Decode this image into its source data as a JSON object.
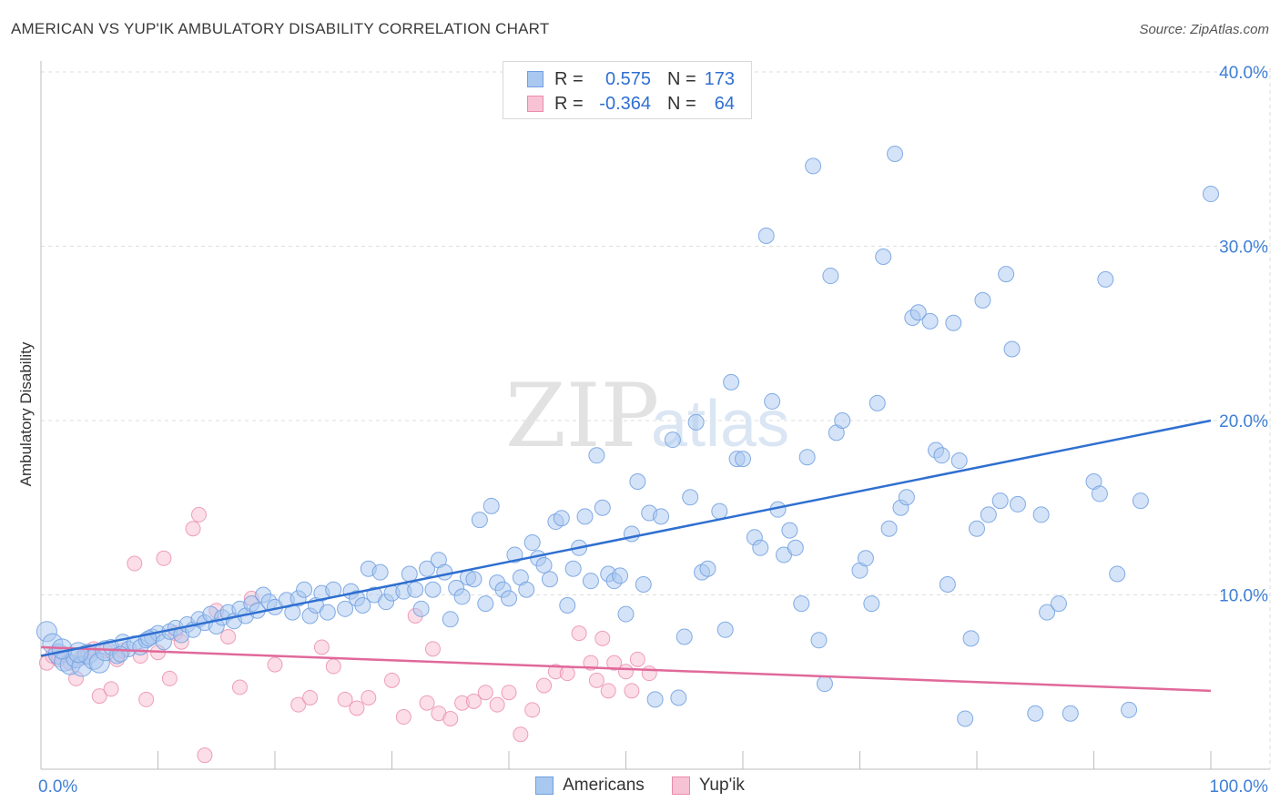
{
  "title": "AMERICAN VS YUP'IK AMBULATORY DISABILITY CORRELATION CHART",
  "source": "Source: ZipAtlas.com",
  "watermark": {
    "zip": "ZIP",
    "atlas": "atlas"
  },
  "legend": {
    "rows": [
      {
        "r_label": "R =",
        "r_value": "0.575",
        "n_label": "N =",
        "n_value": "173",
        "color": "#a9c8f0",
        "border": "#6f9fe0"
      },
      {
        "r_label": "R =",
        "r_value": "-0.364",
        "n_label": "N =",
        "n_value": "64",
        "color": "#f7c3d4",
        "border": "#ea8aac"
      }
    ]
  },
  "bottom_legend": [
    {
      "name": "Americans",
      "color": "#a9c8f0",
      "border": "#6f9fe0"
    },
    {
      "name": "Yup'ik",
      "color": "#f7c3d4",
      "border": "#ea8aac"
    }
  ],
  "chart_data": {
    "type": "scatter",
    "xlabel": "",
    "ylabel": "Ambulatory Disability",
    "xlim": [
      0,
      100
    ],
    "ylim": [
      0,
      40
    ],
    "x_tick_labels": [
      "0.0%",
      "100.0%"
    ],
    "y_ticks": [
      10,
      20,
      30,
      40
    ],
    "y_tick_labels": [
      "10.0%",
      "20.0%",
      "30.0%",
      "40.0%"
    ],
    "grid": true,
    "legend_position": "top-center",
    "colors": {
      "americans_fill": "#a9c8f0",
      "americans_line": "#2f6fd0",
      "yupik_fill": "#f7c3d4",
      "yupik_line": "#e0699a"
    },
    "series": [
      {
        "name": "Americans",
        "trend": [
          [
            0,
            6.5
          ],
          [
            100,
            20.0
          ]
        ],
        "points": [
          [
            0.5,
            7.9
          ],
          [
            1,
            7.2
          ],
          [
            1.5,
            6.6
          ],
          [
            2,
            6.2
          ],
          [
            2.5,
            6.0
          ],
          [
            3,
            6.4
          ],
          [
            3.5,
            5.9
          ],
          [
            4,
            6.6
          ],
          [
            4.5,
            6.3
          ],
          [
            5,
            6.1
          ],
          [
            5.5,
            6.8
          ],
          [
            6,
            7.0
          ],
          [
            6.5,
            6.5
          ],
          [
            7,
            7.3
          ],
          [
            7.5,
            6.9
          ],
          [
            8,
            7.2
          ],
          [
            8.5,
            7.0
          ],
          [
            9,
            7.4
          ],
          [
            9.5,
            7.6
          ],
          [
            10,
            7.8
          ],
          [
            10.5,
            7.3
          ],
          [
            11,
            7.9
          ],
          [
            11.5,
            8.1
          ],
          [
            12,
            7.7
          ],
          [
            12.5,
            8.3
          ],
          [
            13,
            8.0
          ],
          [
            13.5,
            8.6
          ],
          [
            14,
            8.4
          ],
          [
            14.5,
            8.9
          ],
          [
            15,
            8.2
          ],
          [
            15.5,
            8.7
          ],
          [
            16,
            9.0
          ],
          [
            16.5,
            8.5
          ],
          [
            17,
            9.2
          ],
          [
            17.5,
            8.8
          ],
          [
            18,
            9.5
          ],
          [
            18.5,
            9.1
          ],
          [
            19,
            10.0
          ],
          [
            19.5,
            9.6
          ],
          [
            20,
            9.3
          ],
          [
            21,
            9.7
          ],
          [
            21.5,
            9.0
          ],
          [
            22,
            9.8
          ],
          [
            22.5,
            10.3
          ],
          [
            23,
            8.8
          ],
          [
            23.5,
            9.4
          ],
          [
            24,
            10.1
          ],
          [
            24.5,
            9.0
          ],
          [
            25,
            10.3
          ],
          [
            26,
            9.2
          ],
          [
            26.5,
            10.2
          ],
          [
            27,
            9.8
          ],
          [
            27.5,
            9.4
          ],
          [
            28,
            11.5
          ],
          [
            28.5,
            10.0
          ],
          [
            29,
            11.3
          ],
          [
            29.5,
            9.6
          ],
          [
            30,
            10.1
          ],
          [
            31,
            10.2
          ],
          [
            31.5,
            11.2
          ],
          [
            32,
            10.3
          ],
          [
            32.5,
            9.2
          ],
          [
            33,
            11.5
          ],
          [
            33.5,
            10.3
          ],
          [
            34,
            12.0
          ],
          [
            34.5,
            11.3
          ],
          [
            35,
            8.6
          ],
          [
            35.5,
            10.4
          ],
          [
            36,
            9.9
          ],
          [
            36.5,
            11.0
          ],
          [
            37,
            10.9
          ],
          [
            37.5,
            14.3
          ],
          [
            38,
            9.5
          ],
          [
            38.5,
            15.1
          ],
          [
            39,
            10.7
          ],
          [
            39.5,
            10.3
          ],
          [
            40,
            9.8
          ],
          [
            40.5,
            12.3
          ],
          [
            41,
            11.0
          ],
          [
            41.5,
            10.3
          ],
          [
            42,
            13.0
          ],
          [
            42.5,
            12.1
          ],
          [
            43,
            11.7
          ],
          [
            43.5,
            10.9
          ],
          [
            44,
            14.2
          ],
          [
            44.5,
            14.4
          ],
          [
            45,
            9.4
          ],
          [
            45.5,
            11.5
          ],
          [
            46,
            12.7
          ],
          [
            46.5,
            14.5
          ],
          [
            47,
            10.8
          ],
          [
            47.5,
            18.0
          ],
          [
            48,
            15.0
          ],
          [
            48.5,
            11.2
          ],
          [
            49,
            10.8
          ],
          [
            49.5,
            11.1
          ],
          [
            50,
            8.9
          ],
          [
            50.5,
            13.5
          ],
          [
            51,
            16.5
          ],
          [
            51.5,
            10.6
          ],
          [
            52,
            14.7
          ],
          [
            52.5,
            4.0
          ],
          [
            53,
            14.5
          ],
          [
            54,
            18.9
          ],
          [
            54.5,
            4.1
          ],
          [
            55,
            7.6
          ],
          [
            55.5,
            15.6
          ],
          [
            56,
            19.9
          ],
          [
            56.5,
            11.3
          ],
          [
            57,
            11.5
          ],
          [
            58,
            14.8
          ],
          [
            58.5,
            8.0
          ],
          [
            59,
            22.2
          ],
          [
            59.5,
            17.8
          ],
          [
            60,
            17.8
          ],
          [
            61,
            13.3
          ],
          [
            61.5,
            12.7
          ],
          [
            62,
            30.6
          ],
          [
            62.5,
            21.1
          ],
          [
            63,
            14.9
          ],
          [
            63.5,
            12.3
          ],
          [
            64,
            13.7
          ],
          [
            64.5,
            12.7
          ],
          [
            65,
            9.5
          ],
          [
            65.5,
            17.9
          ],
          [
            66,
            34.6
          ],
          [
            66.5,
            7.4
          ],
          [
            67,
            4.9
          ],
          [
            67.5,
            28.3
          ],
          [
            68,
            19.3
          ],
          [
            68.5,
            20.0
          ],
          [
            70,
            11.4
          ],
          [
            70.5,
            12.1
          ],
          [
            71,
            9.5
          ],
          [
            71.5,
            21.0
          ],
          [
            72,
            29.4
          ],
          [
            72.5,
            13.8
          ],
          [
            73,
            35.3
          ],
          [
            73.5,
            15.0
          ],
          [
            74,
            15.6
          ],
          [
            74.5,
            25.9
          ],
          [
            75,
            26.2
          ],
          [
            76,
            25.7
          ],
          [
            76.5,
            18.3
          ],
          [
            77,
            18.0
          ],
          [
            77.5,
            10.6
          ],
          [
            78,
            25.6
          ],
          [
            78.5,
            17.7
          ],
          [
            79,
            2.9
          ],
          [
            79.5,
            7.5
          ],
          [
            80,
            13.8
          ],
          [
            80.5,
            26.9
          ],
          [
            81,
            14.6
          ],
          [
            82,
            15.4
          ],
          [
            82.5,
            28.4
          ],
          [
            83,
            24.1
          ],
          [
            83.5,
            15.2
          ],
          [
            85,
            3.2
          ],
          [
            85.5,
            14.6
          ],
          [
            86,
            9.0
          ],
          [
            87,
            9.5
          ],
          [
            88,
            3.2
          ],
          [
            90,
            16.5
          ],
          [
            90.5,
            15.8
          ],
          [
            91,
            28.1
          ],
          [
            92,
            11.2
          ],
          [
            93,
            3.4
          ],
          [
            94,
            15.4
          ],
          [
            100,
            33.0
          ],
          [
            1.8,
            6.9
          ],
          [
            3.2,
            6.7
          ],
          [
            6.8,
            6.6
          ],
          [
            9.2,
            7.5
          ]
        ]
      },
      {
        "name": "Yup'ik",
        "trend": [
          [
            0,
            7.0
          ],
          [
            100,
            4.5
          ]
        ],
        "points": [
          [
            0.5,
            6.1
          ],
          [
            1,
            6.5
          ],
          [
            1.5,
            6.3
          ],
          [
            2,
            6.6
          ],
          [
            2.5,
            6.1
          ],
          [
            3,
            5.2
          ],
          [
            3.5,
            6.4
          ],
          [
            4,
            6.7
          ],
          [
            4.5,
            6.9
          ],
          [
            5,
            4.2
          ],
          [
            5.5,
            6.8
          ],
          [
            6,
            4.6
          ],
          [
            6.5,
            6.3
          ],
          [
            7,
            6.8
          ],
          [
            8,
            11.8
          ],
          [
            8.5,
            6.5
          ],
          [
            9,
            4.0
          ],
          [
            10,
            6.7
          ],
          [
            10.5,
            12.1
          ],
          [
            11,
            5.2
          ],
          [
            11.5,
            7.8
          ],
          [
            12,
            7.3
          ],
          [
            13,
            13.8
          ],
          [
            13.5,
            14.6
          ],
          [
            14,
            0.8
          ],
          [
            15,
            9.1
          ],
          [
            16,
            7.6
          ],
          [
            17,
            4.7
          ],
          [
            18,
            9.8
          ],
          [
            20,
            6.0
          ],
          [
            22,
            3.7
          ],
          [
            23,
            4.1
          ],
          [
            24,
            7.0
          ],
          [
            25,
            5.9
          ],
          [
            26,
            4.0
          ],
          [
            27,
            3.5
          ],
          [
            28,
            4.1
          ],
          [
            30,
            5.1
          ],
          [
            31,
            3.0
          ],
          [
            32,
            8.8
          ],
          [
            33,
            3.8
          ],
          [
            33.5,
            6.9
          ],
          [
            34,
            3.2
          ],
          [
            35,
            2.9
          ],
          [
            36,
            3.8
          ],
          [
            37,
            3.9
          ],
          [
            38,
            4.4
          ],
          [
            39,
            3.7
          ],
          [
            40,
            4.4
          ],
          [
            41,
            2.0
          ],
          [
            42,
            3.4
          ],
          [
            43,
            4.8
          ],
          [
            44,
            5.6
          ],
          [
            45,
            5.5
          ],
          [
            46,
            7.8
          ],
          [
            47,
            6.1
          ],
          [
            47.5,
            5.1
          ],
          [
            48,
            7.5
          ],
          [
            48.5,
            4.5
          ],
          [
            49,
            6.1
          ],
          [
            50,
            5.6
          ],
          [
            50.5,
            4.5
          ],
          [
            51,
            6.3
          ],
          [
            52,
            5.5
          ]
        ]
      }
    ]
  }
}
